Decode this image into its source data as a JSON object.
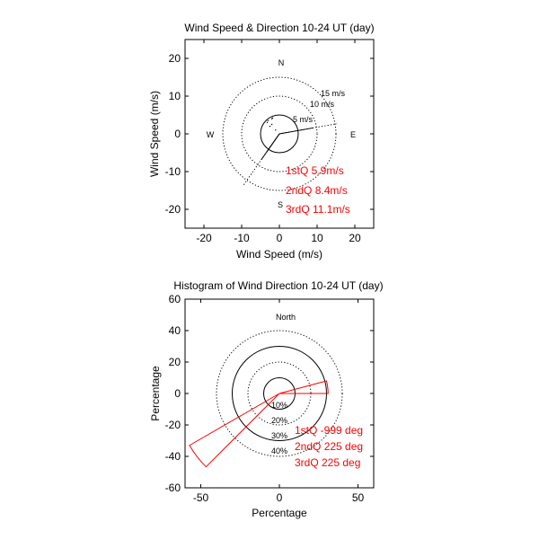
{
  "chart_data": [
    {
      "type": "polar-scatter",
      "title": "Wind Speed & Direction 10-24 UT (day)",
      "xlabel": "Wind Speed (m/s)",
      "ylabel": "Wind Speed (m/s)",
      "xlim": [
        -25,
        25
      ],
      "ylim": [
        -25,
        25
      ],
      "xticks": [
        -20,
        -10,
        0,
        10,
        20
      ],
      "yticks": [
        20,
        10,
        0,
        -10,
        -20
      ],
      "compass": {
        "north": "N",
        "south": "S",
        "west": "W",
        "east": "E"
      },
      "rings": [
        {
          "radius": 5,
          "label": "5 m/s",
          "style": "solid"
        },
        {
          "radius": 10,
          "label": "10 m/s",
          "style": "dotted"
        },
        {
          "radius": 15,
          "label": "15 m/s",
          "style": "dotted"
        }
      ],
      "quartile_vectors": [
        {
          "name": "1stQ",
          "direction_deg": 215,
          "speed": 5.9,
          "style": "solid"
        },
        {
          "name": "2ndQ",
          "direction_deg": 215,
          "speed": 8.4,
          "style": "solid"
        },
        {
          "name": "3rdQ",
          "direction_deg": 215,
          "speed": 11.1,
          "style": "dotted",
          "extent": 17
        }
      ],
      "other_vectors": [
        {
          "direction_deg": 80,
          "speed": 15.5,
          "style": "dotted"
        },
        {
          "direction_deg": 80,
          "speed": 9,
          "style": "solid"
        }
      ],
      "scatter_points": [
        [
          -2,
          4
        ],
        [
          -3,
          3.5
        ],
        [
          -1.8,
          4.2
        ],
        [
          -2.5,
          2
        ],
        [
          -1,
          1
        ],
        [
          -2,
          2.5
        ],
        [
          -3.2,
          3
        ]
      ],
      "annotations": [
        "1stQ 5.9m/s",
        "2ndQ 8.4m/s",
        "3rdQ 11.1m/s"
      ]
    },
    {
      "type": "polar-histogram",
      "title": "Histogram of Wind Direction 10-24 UT (day)",
      "xlabel": "Percentage",
      "ylabel": "Percentage",
      "xlim": [
        -60,
        60
      ],
      "ylim": [
        -60,
        60
      ],
      "xticks": [
        -50,
        0,
        50
      ],
      "yticks": [
        60,
        40,
        20,
        0,
        -20,
        -40,
        -60
      ],
      "north_label": "North",
      "rings": [
        {
          "radius": 10,
          "label": "10%",
          "style": "solid"
        },
        {
          "radius": 20,
          "label": "20%",
          "style": "dotted"
        },
        {
          "radius": 30,
          "label": "30%",
          "style": "solid"
        },
        {
          "radius": 40,
          "label": "40%",
          "style": "dotted"
        }
      ],
      "bins": [
        {
          "center_deg": 82.5,
          "width_deg": 15,
          "percent": 31
        },
        {
          "center_deg": 232.5,
          "width_deg": 15,
          "percent": 66
        }
      ],
      "annotations": [
        "1stQ -999 deg",
        "2ndQ 225 deg",
        "3rdQ 225 deg"
      ]
    }
  ]
}
